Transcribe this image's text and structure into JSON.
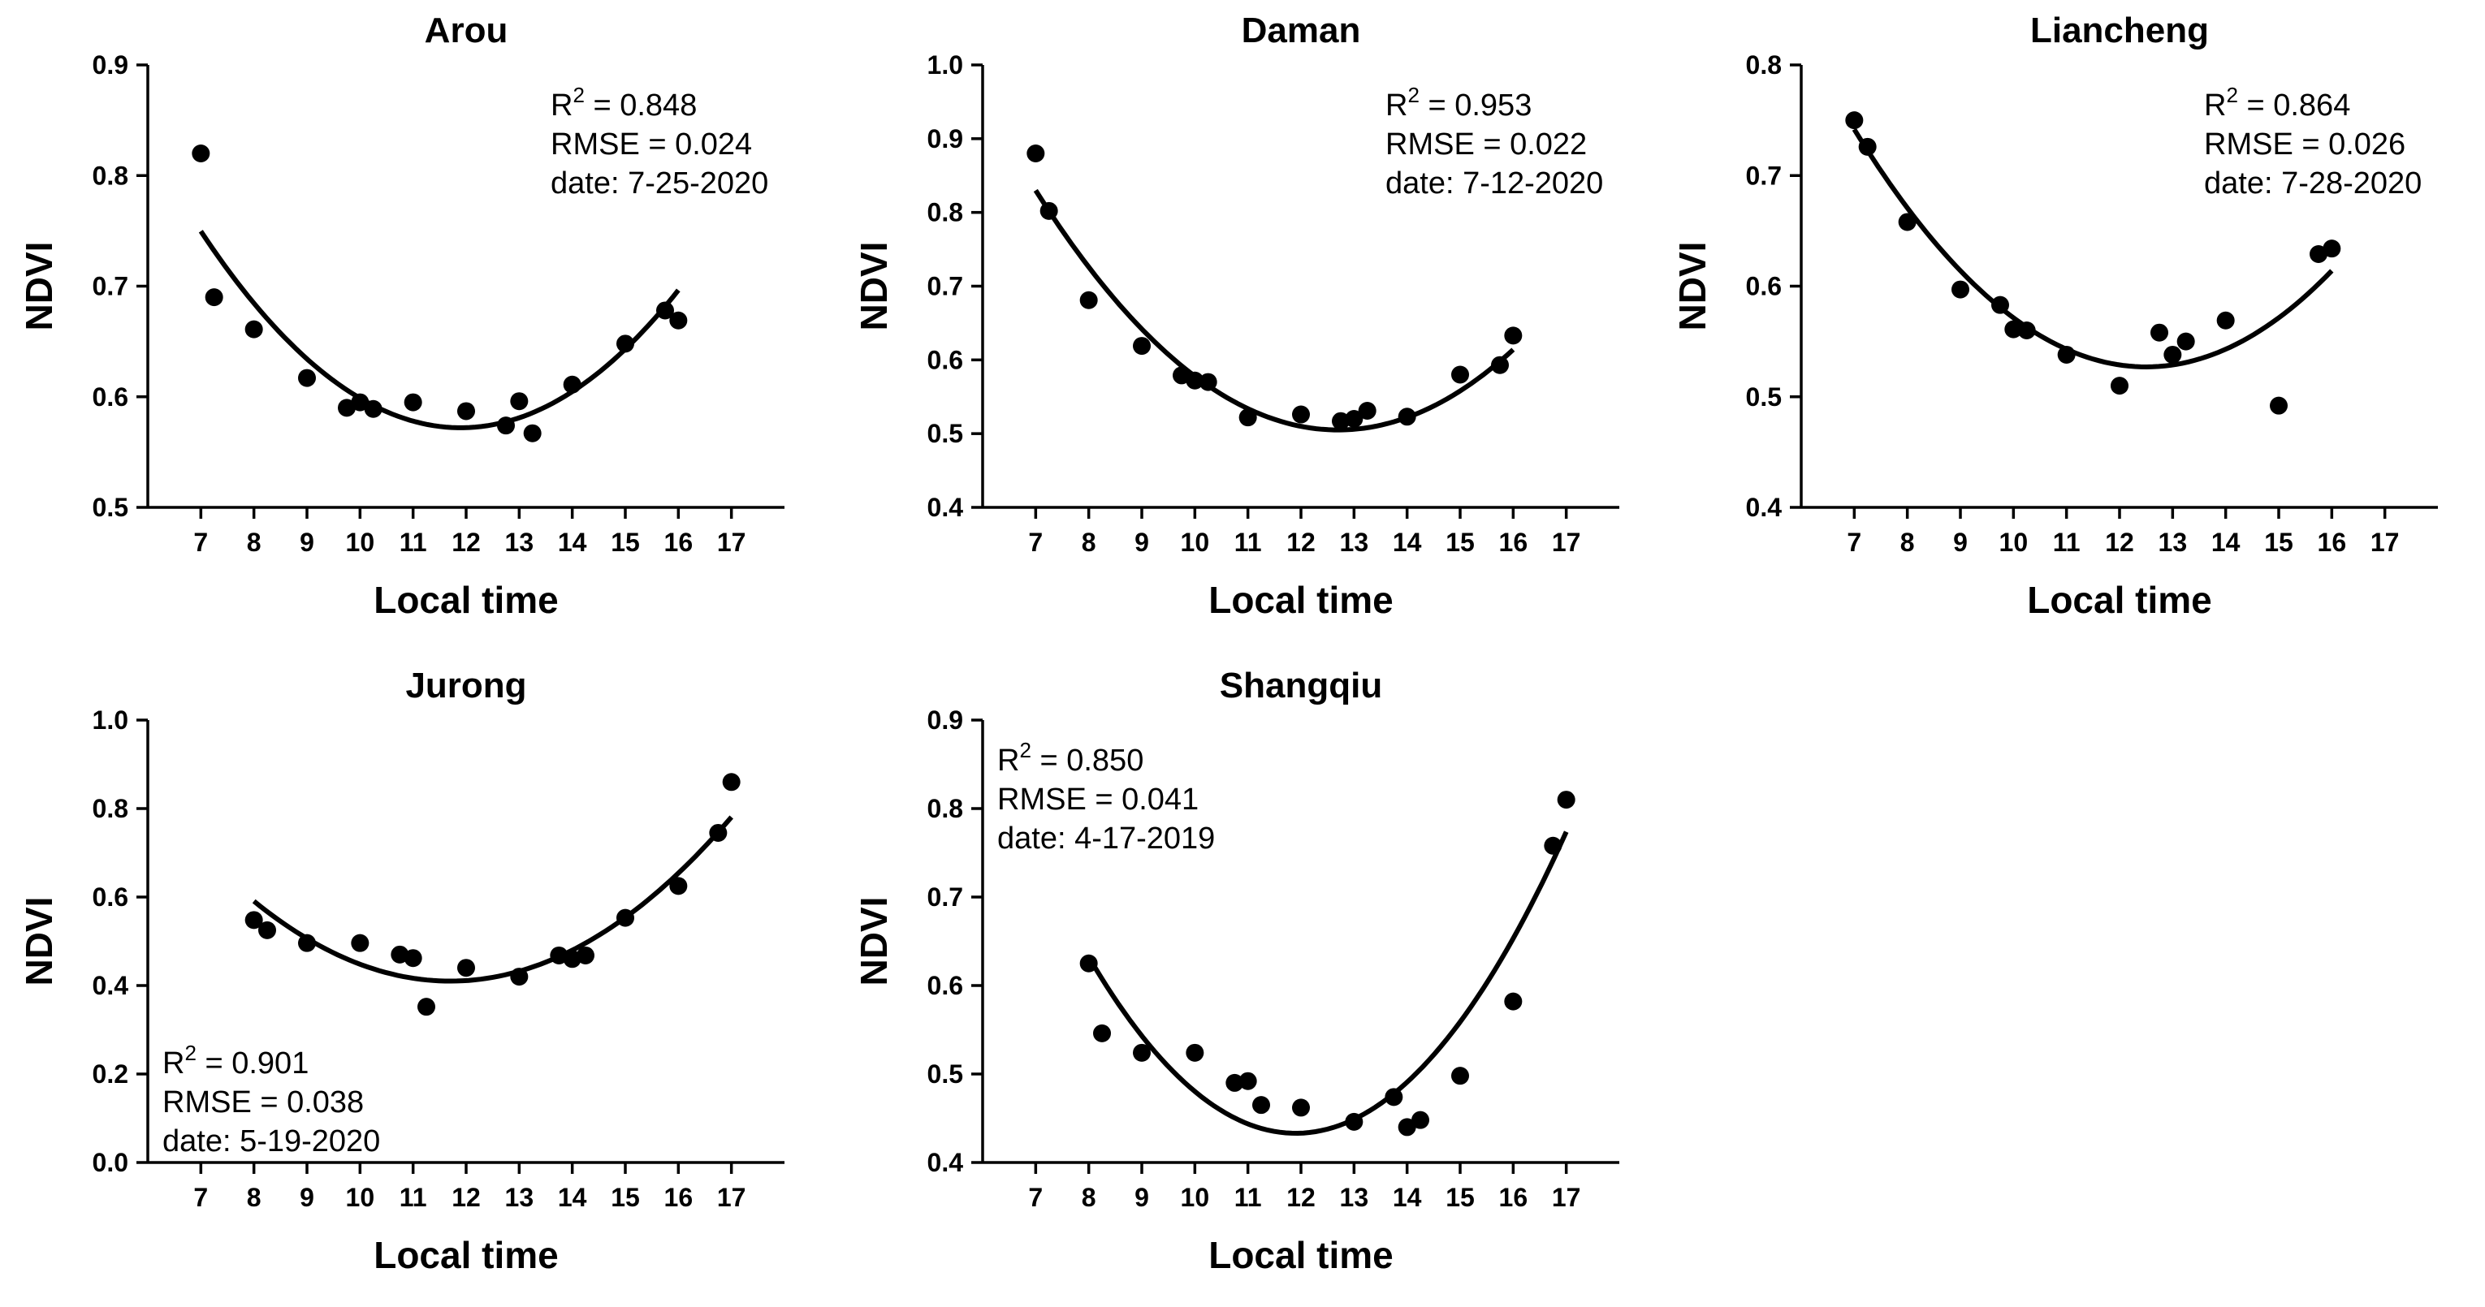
{
  "chart_data": [
    {
      "type": "scatter",
      "title": "Arou",
      "xlabel": "Local time",
      "ylabel": "NDVI",
      "xlim": [
        6,
        18
      ],
      "ylim": [
        0.5,
        0.9
      ],
      "xticks": [
        7,
        8,
        9,
        10,
        11,
        12,
        13,
        14,
        15,
        16,
        17
      ],
      "yticks": [
        "0.5",
        "0.6",
        "0.7",
        "0.8",
        "0.9"
      ],
      "points": {
        "x": [
          7.0,
          7.25,
          8.0,
          9.0,
          9.75,
          10.0,
          10.25,
          11.0,
          12.0,
          12.75,
          13.0,
          13.25,
          14.0,
          15.0,
          15.75,
          16.0
        ],
        "y": [
          0.82,
          0.69,
          0.661,
          0.617,
          0.59,
          0.595,
          0.589,
          0.595,
          0.587,
          0.574,
          0.596,
          0.567,
          0.611,
          0.648,
          0.678,
          0.669
        ]
      },
      "fit": {
        "x_range": [
          7,
          16
        ],
        "vertex_x": 11.9,
        "vertex_y": 0.572,
        "coef_a": 0.0074
      },
      "stats": {
        "r2_prefix": "R",
        "r2_exp": "2",
        "r2_value": " = 0.848",
        "rmse": "RMSE = 0.024",
        "date": "date: 7-25-2020"
      },
      "stats_position": "top-right"
    },
    {
      "type": "scatter",
      "title": "Daman",
      "xlabel": "Local time",
      "ylabel": "NDVI",
      "xlim": [
        6,
        18
      ],
      "ylim": [
        0.4,
        1.0
      ],
      "xticks": [
        7,
        8,
        9,
        10,
        11,
        12,
        13,
        14,
        15,
        16,
        17
      ],
      "yticks": [
        "0.4",
        "0.5",
        "0.6",
        "0.7",
        "0.8",
        "0.9",
        "1.0"
      ],
      "points": {
        "x": [
          7.0,
          7.25,
          8.0,
          9.0,
          9.75,
          10.0,
          10.25,
          11.0,
          12.0,
          12.75,
          13.0,
          13.25,
          14.0,
          15.0,
          15.75,
          16.0
        ],
        "y": [
          0.88,
          0.802,
          0.681,
          0.619,
          0.579,
          0.572,
          0.57,
          0.522,
          0.526,
          0.517,
          0.52,
          0.531,
          0.523,
          0.58,
          0.593,
          0.633
        ]
      },
      "fit": {
        "x_range": [
          7,
          16
        ],
        "vertex_x": 12.7,
        "vertex_y": 0.505,
        "coef_a": 0.01
      },
      "stats": {
        "r2_prefix": "R",
        "r2_exp": "2",
        "r2_value": " = 0.953",
        "rmse": "RMSE = 0.022",
        "date": "date: 7-12-2020"
      },
      "stats_position": "top-right"
    },
    {
      "type": "scatter",
      "title": "Liancheng",
      "xlabel": "Local time",
      "ylabel": "NDVI",
      "xlim": [
        6,
        18
      ],
      "ylim": [
        0.4,
        0.8
      ],
      "xticks": [
        7,
        8,
        9,
        10,
        11,
        12,
        13,
        14,
        15,
        16,
        17
      ],
      "yticks": [
        "0.4",
        "0.5",
        "0.6",
        "0.7",
        "0.8"
      ],
      "points": {
        "x": [
          7.0,
          7.25,
          8.0,
          9.0,
          9.75,
          10.0,
          10.25,
          11.0,
          12.0,
          12.75,
          13.0,
          13.25,
          14.0,
          15.0,
          15.75,
          16.0
        ],
        "y": [
          0.75,
          0.726,
          0.658,
          0.597,
          0.583,
          0.561,
          0.56,
          0.538,
          0.51,
          0.558,
          0.538,
          0.55,
          0.569,
          0.492,
          0.629,
          0.634
        ]
      },
      "fit": {
        "x_range": [
          7,
          16
        ],
        "vertex_x": 12.5,
        "vertex_y": 0.527,
        "coef_a": 0.0071
      },
      "stats": {
        "r2_prefix": "R",
        "r2_exp": "2",
        "r2_value": " = 0.864",
        "rmse": "RMSE = 0.026",
        "date": "date: 7-28-2020"
      },
      "stats_position": "top-right"
    },
    {
      "type": "scatter",
      "title": "Jurong",
      "xlabel": "Local time",
      "ylabel": "NDVI",
      "xlim": [
        6,
        18
      ],
      "ylim": [
        0.0,
        1.0
      ],
      "xticks": [
        7,
        8,
        9,
        10,
        11,
        12,
        13,
        14,
        15,
        16,
        17
      ],
      "yticks": [
        "0.0",
        "0.2",
        "0.4",
        "0.6",
        "0.8",
        "1.0"
      ],
      "points": {
        "x": [
          8.0,
          8.25,
          9.0,
          10.0,
          10.75,
          11.0,
          11.25,
          12.0,
          13.0,
          13.75,
          14.0,
          14.25,
          15.0,
          16.0,
          16.75,
          17.0
        ],
        "y": [
          0.548,
          0.525,
          0.496,
          0.496,
          0.47,
          0.462,
          0.352,
          0.44,
          0.42,
          0.468,
          0.46,
          0.468,
          0.553,
          0.625,
          0.745,
          0.86
        ]
      },
      "fit": {
        "x_range": [
          8,
          17
        ],
        "vertex_x": 11.7,
        "vertex_y": 0.41,
        "coef_a": 0.0132
      },
      "stats": {
        "r2_prefix": "R",
        "r2_exp": "2",
        "r2_value": " = 0.901",
        "rmse": "RMSE = 0.038",
        "date": "date: 5-19-2020"
      },
      "stats_position": "bottom-left"
    },
    {
      "type": "scatter",
      "title": "Shangqiu",
      "xlabel": "Local time",
      "ylabel": "NDVI",
      "xlim": [
        6,
        18
      ],
      "ylim": [
        0.4,
        0.9
      ],
      "xticks": [
        7,
        8,
        9,
        10,
        11,
        12,
        13,
        14,
        15,
        16,
        17
      ],
      "yticks": [
        "0.4",
        "0.5",
        "0.6",
        "0.7",
        "0.8",
        "0.9"
      ],
      "points": {
        "x": [
          8.0,
          8.25,
          9.0,
          10.0,
          10.75,
          11.0,
          11.25,
          12.0,
          13.0,
          13.75,
          14.0,
          14.25,
          15.0,
          16.0,
          16.75,
          17.0
        ],
        "y": [
          0.625,
          0.546,
          0.524,
          0.524,
          0.49,
          0.492,
          0.465,
          0.462,
          0.446,
          0.474,
          0.44,
          0.448,
          0.498,
          0.582,
          0.758,
          0.81
        ]
      },
      "fit": {
        "x_range": [
          8,
          17
        ],
        "vertex_x": 11.9,
        "vertex_y": 0.433,
        "coef_a": 0.0131
      },
      "stats": {
        "r2_prefix": "R",
        "r2_exp": "2",
        "r2_value": " = 0.850",
        "rmse": "RMSE = 0.041",
        "date": "date: 4-17-2019"
      },
      "stats_position": "top-left"
    }
  ]
}
